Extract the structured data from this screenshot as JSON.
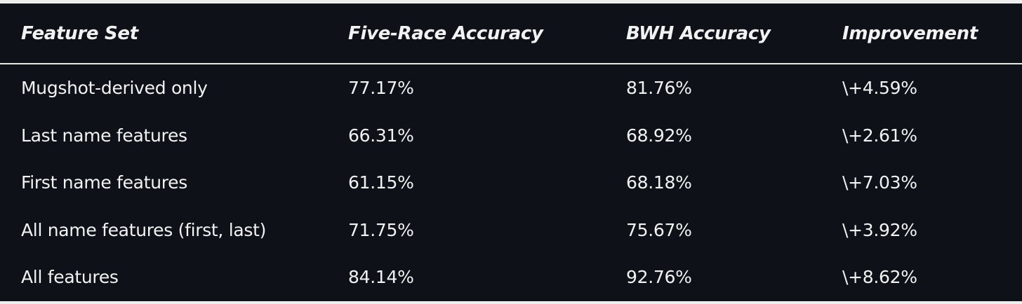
{
  "table": {
    "header": [
      "Feature Set",
      "Five-Race Accuracy",
      "BWH Accuracy",
      "Improvement"
    ],
    "rows": [
      [
        "Mugshot-derived only",
        "77.17%",
        "81.76%",
        "\\+4.59%"
      ],
      [
        "Last name features",
        "66.31%",
        "68.92%",
        "\\+2.61%"
      ],
      [
        "First name features",
        "61.15%",
        "68.18%",
        "\\+7.03%"
      ],
      [
        "All name features (first, last)",
        "71.75%",
        "75.67%",
        "\\+3.92%"
      ],
      [
        "All features",
        "84.14%",
        "92.76%",
        "\\+8.62%"
      ]
    ]
  }
}
